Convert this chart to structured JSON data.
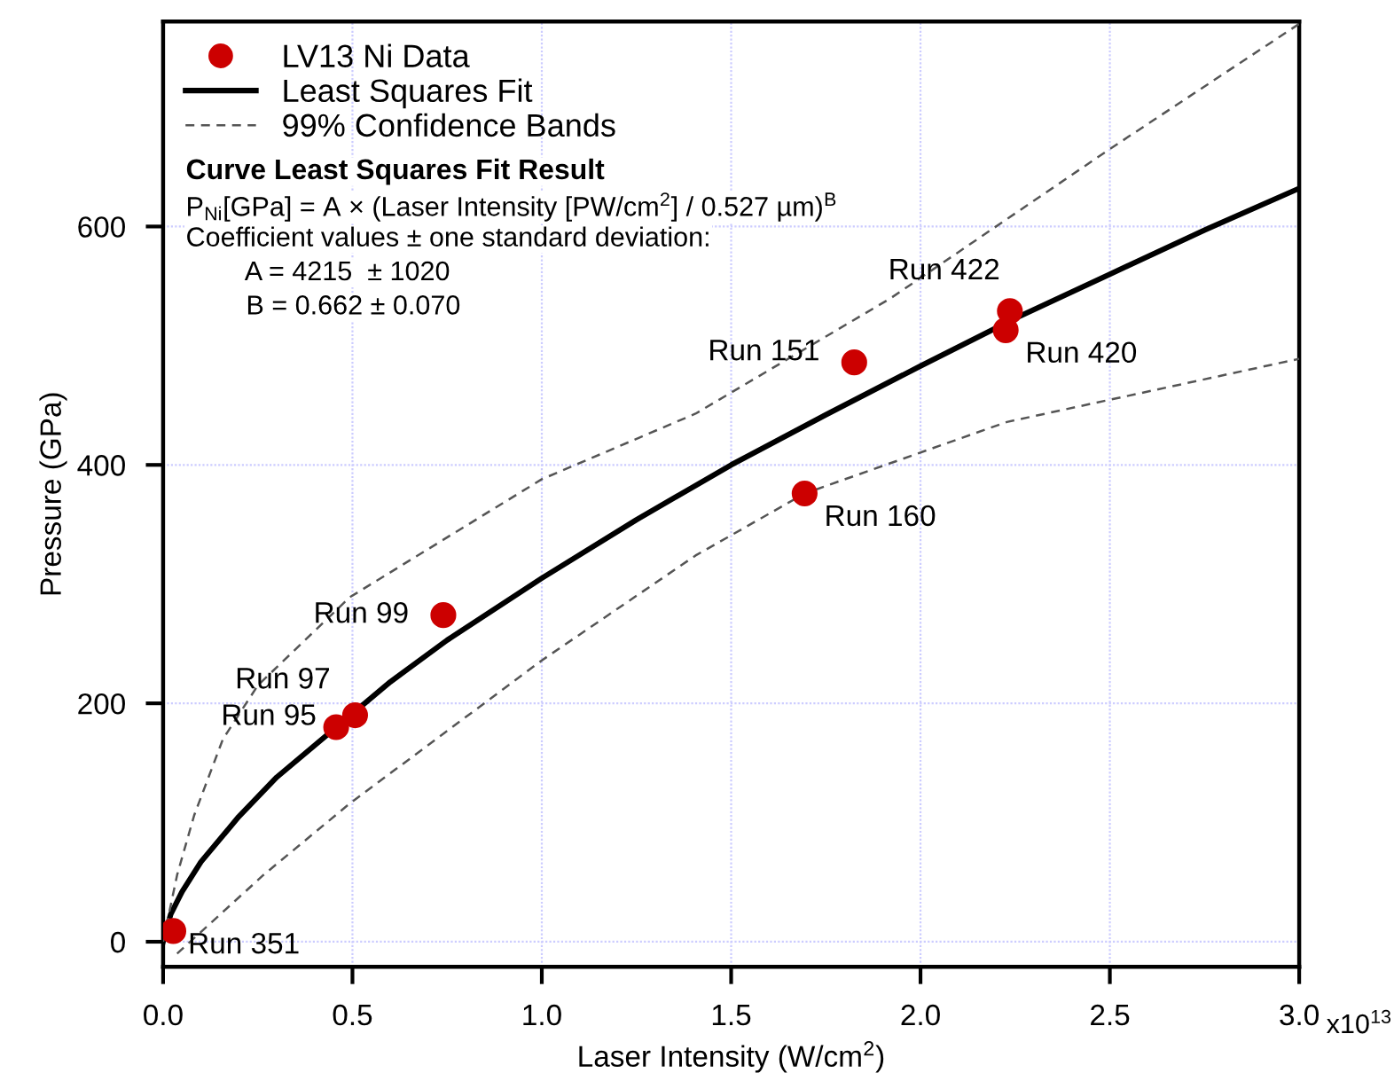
{
  "chart_data": {
    "type": "scatter",
    "xlabel": "Laser Intensity (W/cm$^{2}$)",
    "ylabel": "Pressure (GPa)",
    "xlim": [
      0,
      3.0
    ],
    "ylim": [
      -21,
      772
    ],
    "xticks": [
      {
        "value": 0,
        "label": "0.0"
      },
      {
        "value": 0.5,
        "label": "0.5"
      },
      {
        "value": 1.0,
        "label": "1.0"
      },
      {
        "value": 1.5,
        "label": "1.5"
      },
      {
        "value": 2.0,
        "label": "2.0"
      },
      {
        "value": 2.5,
        "label": "2.5"
      },
      {
        "value": 3.0,
        "label": "3.0"
      }
    ],
    "yticks": [
      0,
      200,
      400,
      600
    ],
    "grid": true,
    "legend": "top left",
    "series": [
      {
        "name": "LV13 Ni Data",
        "marker": "circle",
        "color": "#cc0000",
        "x": [
          0.027,
          0.457,
          0.507,
          0.74,
          1.825,
          1.694,
          2.236,
          2.225
        ],
        "values": [
          9,
          180,
          190,
          274,
          486,
          376,
          529,
          513
        ]
      },
      {
        "name": "Least Squares Fit",
        "type": "line",
        "marker": "none",
        "line_style": "solid",
        "color": "#000000",
        "x": [
          0,
          0.02,
          0.05,
          0.1,
          0.2,
          0.3,
          0.6,
          0.75,
          1.0,
          1.25,
          1.5,
          1.75,
          2.0,
          2.25,
          2.5,
          2.75,
          3.0
        ],
        "values": [
          0,
          23,
          42,
          67,
          105,
          138,
          218,
          253,
          305,
          354,
          400,
          442,
          483,
          523,
          560,
          597,
          632
        ]
      },
      {
        "name": "99% Confidence Bands",
        "type": "line",
        "marker": "none",
        "line_style": "dashed",
        "color": "#555555",
        "x": [
          0,
          0.037,
          0.082,
          0.158,
          0.25,
          0.493,
          1.0,
          1.406,
          1.922,
          2.5,
          3.0
        ],
        "values": [
          0,
          56,
          106,
          170,
          215,
          289,
          388,
          443,
          540,
          665,
          770
        ]
      },
      {
        "type": "line",
        "marker": "none",
        "line_style": "dashed",
        "color": "#555555",
        "x": [
          0.037,
          0.265,
          0.493,
          1.0,
          1.406,
          1.694,
          2.228,
          3.0
        ],
        "values": [
          -10,
          56,
          116,
          236,
          324,
          376,
          436,
          489
        ]
      }
    ],
    "annotations": [
      "x10$^{13}$",
      "Curve Least Squares Fit Result",
      "P$_{Ni}$[GPa] = A × (Laser Intensity [PW/cm$^{2}$] / 0.527 µm)$^{B}$",
      "Coefficient values ± one standard deviation:",
      "        A = 4215  ± 1020",
      "        B = 0.662 ± 0.070",
      {
        "text": "Run 351",
        "x": 0.027,
        "y": 9
      },
      {
        "text": "Run 95",
        "x": 0.457,
        "y": 180
      },
      {
        "text": "Run 97",
        "x": 0.507,
        "y": 190
      },
      {
        "text": "Run 99",
        "x": 0.74,
        "y": 274
      },
      {
        "text": "Run 151",
        "x": 1.825,
        "y": 486
      },
      {
        "text": "Run 160",
        "x": 1.694,
        "y": 376
      },
      {
        "text": "Run 422",
        "x": 2.236,
        "y": 529
      },
      {
        "text": "Run 420",
        "x": 2.225,
        "y": 513
      }
    ]
  }
}
